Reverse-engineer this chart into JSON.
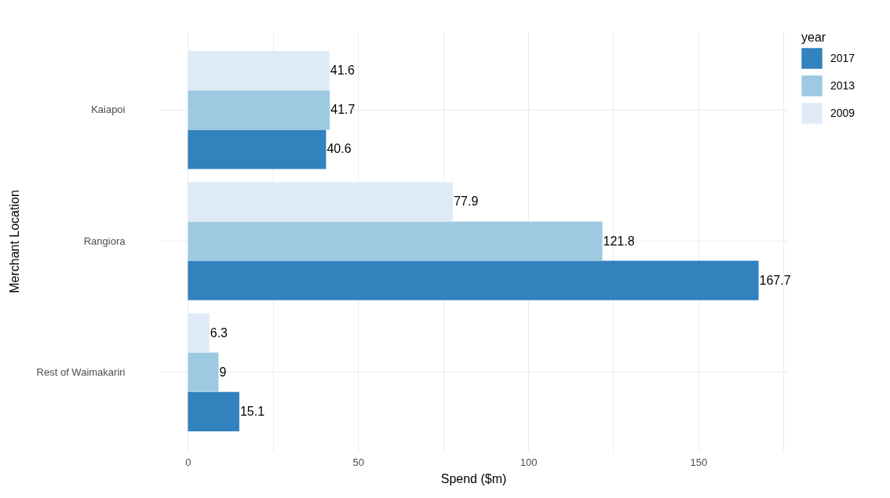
{
  "chart_data": {
    "type": "bar",
    "orientation": "horizontal",
    "xlabel": "Spend ($m)",
    "ylabel": "Merchant Location",
    "legend_title": "year",
    "legend": "right",
    "grid": true,
    "data_labels": true,
    "categories": [
      "Kaiapoi",
      "Rangiora",
      "Rest of Waimakariri"
    ],
    "series": [
      {
        "name": "2017",
        "color": "#3182bd",
        "values": [
          40.6,
          167.7,
          15.1
        ]
      },
      {
        "name": "2013",
        "color": "#9ecae1",
        "values": [
          41.7,
          121.8,
          9
        ]
      },
      {
        "name": "2009",
        "color": "#deebf7",
        "values": [
          41.6,
          77.9,
          6.3
        ]
      }
    ],
    "xlim": [
      -8.4,
      176.1
    ],
    "xticks": [
      0,
      {
        "value": 25,
        "label": null
      },
      50,
      {
        "value": 75,
        "label": null
      },
      100,
      {
        "value": 125,
        "label": null
      },
      150,
      {
        "value": 175,
        "label": null
      }
    ]
  }
}
